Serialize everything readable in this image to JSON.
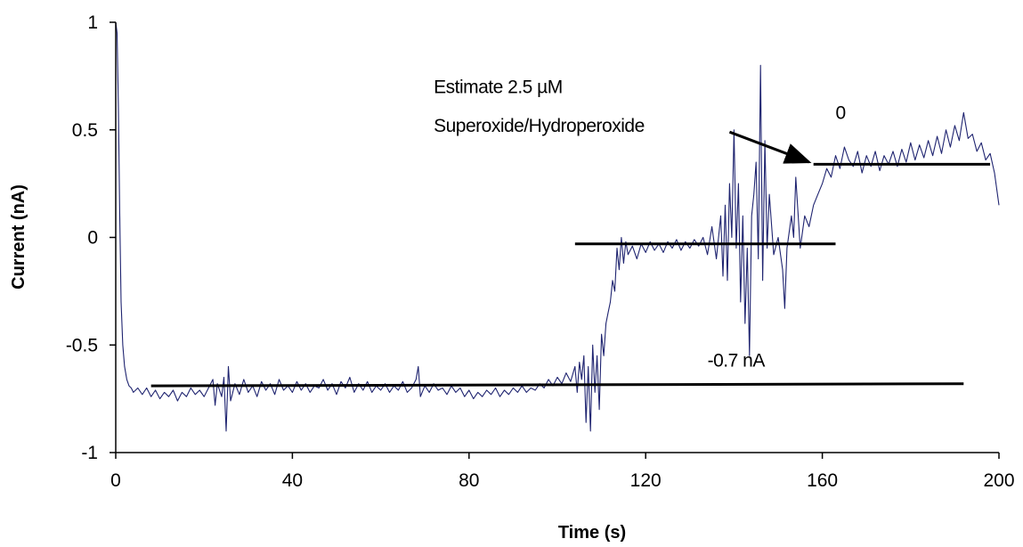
{
  "chart_data": {
    "type": "line",
    "title": "",
    "xlabel": "Time (s)",
    "ylabel": "Current (nA)",
    "xlim": [
      0,
      200
    ],
    "ylim": [
      -1,
      1
    ],
    "x_ticks": [
      0,
      40,
      80,
      120,
      160,
      200
    ],
    "x_tick_labels": [
      "0",
      "40",
      "80",
      "120",
      "160",
      "200"
    ],
    "y_ticks": [
      -1,
      -0.5,
      0,
      0.5,
      1
    ],
    "y_tick_labels": [
      "-1",
      "-0.5",
      "0",
      "0.5",
      "1"
    ],
    "grid": false,
    "legend": "none",
    "series": [
      {
        "color": "#1f2470",
        "points": [
          [
            0,
            1.0
          ],
          [
            0.3,
            0.95
          ],
          [
            0.6,
            0.6
          ],
          [
            0.9,
            0.1
          ],
          [
            1.2,
            -0.3
          ],
          [
            1.6,
            -0.5
          ],
          [
            2.0,
            -0.6
          ],
          [
            2.5,
            -0.66
          ],
          [
            3.0,
            -0.69
          ],
          [
            3.5,
            -0.7
          ],
          [
            4,
            -0.72
          ],
          [
            5,
            -0.7
          ],
          [
            6,
            -0.73
          ],
          [
            7,
            -0.7
          ],
          [
            8,
            -0.74
          ],
          [
            9,
            -0.71
          ],
          [
            10,
            -0.75
          ],
          [
            11,
            -0.72
          ],
          [
            12,
            -0.74
          ],
          [
            13,
            -0.71
          ],
          [
            14,
            -0.76
          ],
          [
            15,
            -0.72
          ],
          [
            16,
            -0.74
          ],
          [
            17,
            -0.7
          ],
          [
            18,
            -0.73
          ],
          [
            19,
            -0.71
          ],
          [
            20,
            -0.74
          ],
          [
            21,
            -0.7
          ],
          [
            22,
            -0.66
          ],
          [
            22.5,
            -0.78
          ],
          [
            23,
            -0.68
          ],
          [
            24,
            -0.74
          ],
          [
            24.5,
            -0.65
          ],
          [
            25,
            -0.9
          ],
          [
            25.5,
            -0.6
          ],
          [
            26,
            -0.76
          ],
          [
            27,
            -0.68
          ],
          [
            28,
            -0.73
          ],
          [
            29,
            -0.66
          ],
          [
            30,
            -0.72
          ],
          [
            31,
            -0.69
          ],
          [
            32,
            -0.74
          ],
          [
            33,
            -0.67
          ],
          [
            34,
            -0.71
          ],
          [
            35,
            -0.68
          ],
          [
            36,
            -0.73
          ],
          [
            37,
            -0.66
          ],
          [
            38,
            -0.71
          ],
          [
            39,
            -0.69
          ],
          [
            40,
            -0.72
          ],
          [
            41,
            -0.67
          ],
          [
            42,
            -0.71
          ],
          [
            43,
            -0.68
          ],
          [
            44,
            -0.72
          ],
          [
            45,
            -0.69
          ],
          [
            46,
            -0.7
          ],
          [
            47,
            -0.66
          ],
          [
            48,
            -0.71
          ],
          [
            49,
            -0.68
          ],
          [
            50,
            -0.73
          ],
          [
            51,
            -0.67
          ],
          [
            52,
            -0.7
          ],
          [
            53,
            -0.65
          ],
          [
            54,
            -0.72
          ],
          [
            55,
            -0.68
          ],
          [
            56,
            -0.71
          ],
          [
            57,
            -0.67
          ],
          [
            58,
            -0.72
          ],
          [
            59,
            -0.69
          ],
          [
            60,
            -0.71
          ],
          [
            61,
            -0.68
          ],
          [
            62,
            -0.72
          ],
          [
            63,
            -0.69
          ],
          [
            64,
            -0.71
          ],
          [
            65,
            -0.67
          ],
          [
            66,
            -0.72
          ],
          [
            67,
            -0.7
          ],
          [
            68,
            -0.66
          ],
          [
            68.5,
            -0.6
          ],
          [
            69,
            -0.74
          ],
          [
            70,
            -0.69
          ],
          [
            71,
            -0.72
          ],
          [
            72,
            -0.68
          ],
          [
            73,
            -0.71
          ],
          [
            74,
            -0.7
          ],
          [
            75,
            -0.73
          ],
          [
            76,
            -0.69
          ],
          [
            77,
            -0.72
          ],
          [
            78,
            -0.7
          ],
          [
            79,
            -0.74
          ],
          [
            80,
            -0.71
          ],
          [
            81,
            -0.75
          ],
          [
            82,
            -0.72
          ],
          [
            83,
            -0.74
          ],
          [
            84,
            -0.71
          ],
          [
            85,
            -0.73
          ],
          [
            86,
            -0.7
          ],
          [
            87,
            -0.74
          ],
          [
            88,
            -0.71
          ],
          [
            89,
            -0.73
          ],
          [
            90,
            -0.7
          ],
          [
            91,
            -0.72
          ],
          [
            92,
            -0.69
          ],
          [
            93,
            -0.72
          ],
          [
            94,
            -0.7
          ],
          [
            95,
            -0.71
          ],
          [
            96,
            -0.68
          ],
          [
            97,
            -0.7
          ],
          [
            98,
            -0.66
          ],
          [
            99,
            -0.69
          ],
          [
            100,
            -0.65
          ],
          [
            101,
            -0.68
          ],
          [
            102,
            -0.63
          ],
          [
            103,
            -0.67
          ],
          [
            104,
            -0.6
          ],
          [
            104.5,
            -0.72
          ],
          [
            105,
            -0.58
          ],
          [
            105.5,
            -0.66
          ],
          [
            106,
            -0.55
          ],
          [
            106.5,
            -0.86
          ],
          [
            107,
            -0.6
          ],
          [
            107.5,
            -0.9
          ],
          [
            108,
            -0.5
          ],
          [
            108.5,
            -0.72
          ],
          [
            109,
            -0.55
          ],
          [
            109.5,
            -0.8
          ],
          [
            110,
            -0.45
          ],
          [
            110.5,
            -0.55
          ],
          [
            111,
            -0.4
          ],
          [
            111.5,
            -0.35
          ],
          [
            112,
            -0.3
          ],
          [
            112.5,
            -0.2
          ],
          [
            113,
            -0.25
          ],
          [
            113.5,
            -0.05
          ],
          [
            114,
            -0.15
          ],
          [
            114.5,
            0.0
          ],
          [
            115,
            -0.12
          ],
          [
            115.5,
            -0.02
          ],
          [
            116,
            -0.08
          ],
          [
            117,
            -0.04
          ],
          [
            118,
            -0.1
          ],
          [
            119,
            -0.03
          ],
          [
            120,
            -0.07
          ],
          [
            121,
            -0.02
          ],
          [
            122,
            -0.06
          ],
          [
            123,
            -0.03
          ],
          [
            124,
            -0.07
          ],
          [
            125,
            -0.02
          ],
          [
            126,
            -0.05
          ],
          [
            127,
            -0.01
          ],
          [
            128,
            -0.06
          ],
          [
            129,
            -0.02
          ],
          [
            130,
            -0.05
          ],
          [
            131,
            -0.01
          ],
          [
            132,
            -0.04
          ],
          [
            133,
            0.0
          ],
          [
            134,
            -0.08
          ],
          [
            135,
            0.05
          ],
          [
            136,
            -0.1
          ],
          [
            137,
            0.1
          ],
          [
            137.5,
            -0.18
          ],
          [
            138,
            0.15
          ],
          [
            138.5,
            -0.2
          ],
          [
            139,
            0.25
          ],
          [
            139.5,
            0.0
          ],
          [
            140,
            0.5
          ],
          [
            140.5,
            -0.05
          ],
          [
            141,
            0.25
          ],
          [
            141.5,
            -0.3
          ],
          [
            142,
            0.1
          ],
          [
            142.5,
            -0.4
          ],
          [
            143,
            -0.05
          ],
          [
            143.5,
            -0.55
          ],
          [
            144,
            0.1
          ],
          [
            144.5,
            0.2
          ],
          [
            145,
            0.35
          ],
          [
            145.5,
            -0.1
          ],
          [
            146,
            0.8
          ],
          [
            146.5,
            -0.2
          ],
          [
            147,
            0.45
          ],
          [
            147.5,
            -0.05
          ],
          [
            148,
            0.2
          ],
          [
            149,
            -0.08
          ],
          [
            150,
            0.0
          ],
          [
            151,
            -0.15
          ],
          [
            151.5,
            -0.33
          ],
          [
            152,
            -0.05
          ],
          [
            153,
            0.1
          ],
          [
            153.5,
            0.0
          ],
          [
            154,
            0.28
          ],
          [
            155,
            -0.05
          ],
          [
            156,
            0.1
          ],
          [
            157,
            0.05
          ],
          [
            158,
            0.15
          ],
          [
            159,
            0.2
          ],
          [
            160,
            0.25
          ],
          [
            161,
            0.32
          ],
          [
            162,
            0.28
          ],
          [
            163,
            0.38
          ],
          [
            164,
            0.32
          ],
          [
            165,
            0.42
          ],
          [
            166,
            0.36
          ],
          [
            167,
            0.33
          ],
          [
            168,
            0.4
          ],
          [
            169,
            0.3
          ],
          [
            170,
            0.38
          ],
          [
            171,
            0.33
          ],
          [
            172,
            0.4
          ],
          [
            173,
            0.31
          ],
          [
            174,
            0.38
          ],
          [
            175,
            0.34
          ],
          [
            176,
            0.4
          ],
          [
            177,
            0.33
          ],
          [
            178,
            0.41
          ],
          [
            179,
            0.35
          ],
          [
            180,
            0.44
          ],
          [
            181,
            0.36
          ],
          [
            182,
            0.43
          ],
          [
            183,
            0.37
          ],
          [
            184,
            0.45
          ],
          [
            185,
            0.38
          ],
          [
            186,
            0.47
          ],
          [
            187,
            0.39
          ],
          [
            188,
            0.5
          ],
          [
            189,
            0.42
          ],
          [
            190,
            0.52
          ],
          [
            191,
            0.45
          ],
          [
            192,
            0.58
          ],
          [
            193,
            0.46
          ],
          [
            194,
            0.48
          ],
          [
            195,
            0.4
          ],
          [
            196,
            0.44
          ],
          [
            197,
            0.36
          ],
          [
            198,
            0.39
          ],
          [
            199,
            0.3
          ],
          [
            200,
            0.15
          ]
        ]
      }
    ],
    "reference_lines": [
      {
        "x": [
          8,
          192
        ],
        "y": [
          -0.69,
          -0.68
        ]
      },
      {
        "x": [
          104,
          163
        ],
        "y": [
          -0.03,
          -0.03
        ]
      },
      {
        "x": [
          158,
          198
        ],
        "y": [
          0.34,
          0.34
        ]
      }
    ],
    "annotations": [
      {
        "text": "Estimate 2.5 µM",
        "x": 72,
        "y": 0.67
      },
      {
        "text": "Superoxide/Hydroperoxide",
        "x": 72,
        "y": 0.49
      },
      {
        "text": "0",
        "x": 163,
        "y": 0.55
      },
      {
        "text": "-0.7 nA",
        "x": 134,
        "y": -0.6
      }
    ],
    "arrow": {
      "from": [
        139,
        0.49
      ],
      "to": [
        157,
        0.35
      ]
    }
  }
}
